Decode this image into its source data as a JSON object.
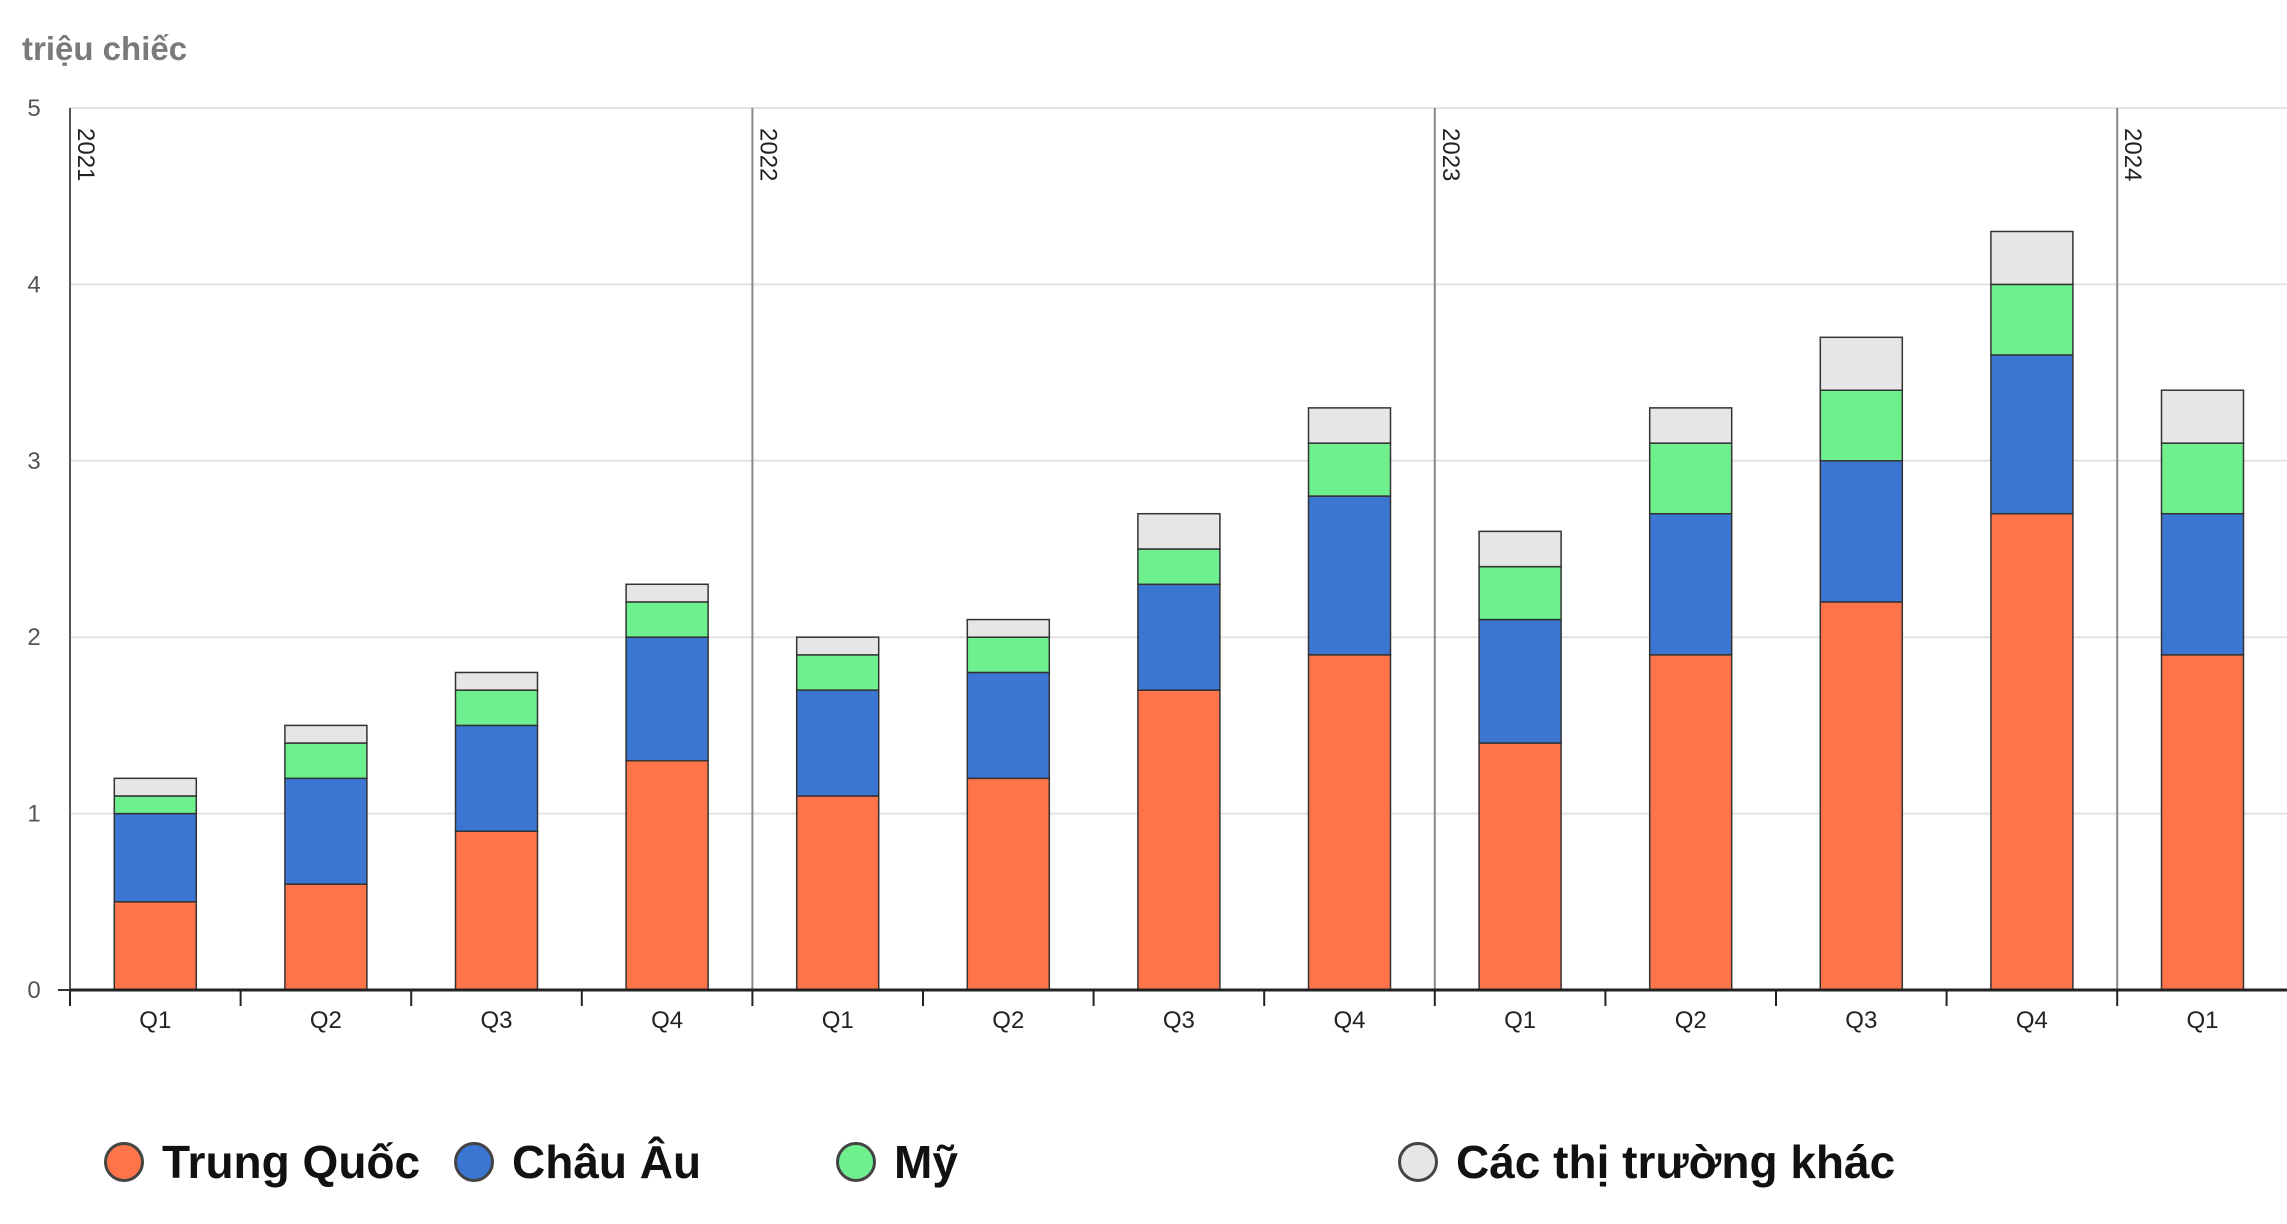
{
  "unit_label": "triệu chiếc",
  "colors": {
    "china": "#ff7449",
    "europe": "#3b76d3",
    "us": "#6ef08f",
    "other": "#e6e6e6"
  },
  "chart_data": {
    "type": "bar",
    "stacked": true,
    "ylabel": "triệu chiếc",
    "ylim": [
      0,
      5
    ],
    "yticks": [
      "0",
      "1",
      "2",
      "3",
      "4",
      "5"
    ],
    "categories": [
      "Q1",
      "Q2",
      "Q3",
      "Q4",
      "Q1",
      "Q2",
      "Q3",
      "Q4",
      "Q1",
      "Q2",
      "Q3",
      "Q4",
      "Q1"
    ],
    "year_labels": [
      {
        "label": "2021",
        "start_index": 0
      },
      {
        "label": "2022",
        "start_index": 4
      },
      {
        "label": "2023",
        "start_index": 8
      },
      {
        "label": "2024",
        "start_index": 12
      }
    ],
    "series": [
      {
        "name": "Trung Quốc",
        "color": "#ff7449",
        "values": [
          0.5,
          0.6,
          0.9,
          1.3,
          1.1,
          1.2,
          1.7,
          1.9,
          1.4,
          1.9,
          2.2,
          2.7,
          1.9
        ]
      },
      {
        "name": "Châu Âu",
        "color": "#3b76d3",
        "values": [
          0.5,
          0.6,
          0.6,
          0.7,
          0.6,
          0.6,
          0.6,
          0.9,
          0.7,
          0.8,
          0.8,
          0.9,
          0.8
        ]
      },
      {
        "name": "Mỹ",
        "color": "#6ef08f",
        "values": [
          0.1,
          0.2,
          0.2,
          0.2,
          0.2,
          0.2,
          0.2,
          0.3,
          0.3,
          0.4,
          0.4,
          0.4,
          0.4
        ]
      },
      {
        "name": "Các thị trường khác",
        "color": "#e6e6e6",
        "values": [
          0.1,
          0.1,
          0.1,
          0.1,
          0.1,
          0.1,
          0.2,
          0.2,
          0.2,
          0.2,
          0.3,
          0.3,
          0.3
        ]
      }
    ],
    "grid": true,
    "legend_position": "bottom"
  }
}
